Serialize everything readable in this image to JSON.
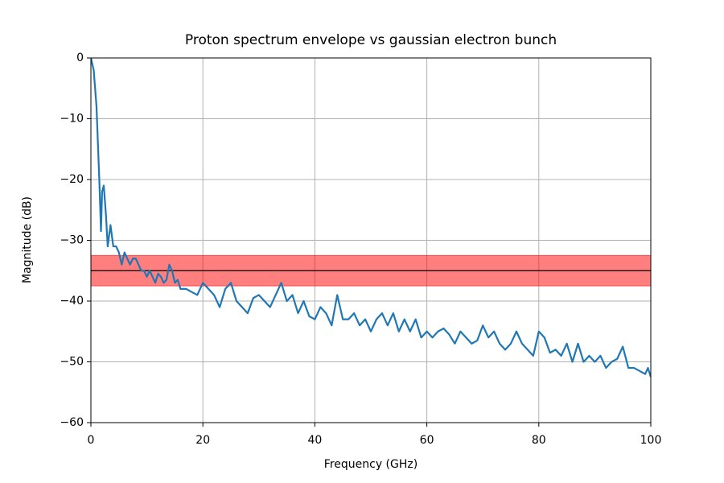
{
  "chart_data": {
    "type": "line",
    "title": "Proton spectrum envelope vs gaussian electron bunch",
    "xlabel": "Frequency (GHz)",
    "ylabel": "Magnitude (dB)",
    "color": "#1f77b4",
    "grid": true,
    "xlim": [
      0,
      100
    ],
    "ylim": [
      -60,
      0
    ],
    "xticks": [
      0,
      20,
      40,
      60,
      80,
      100
    ],
    "yticks": [
      {
        "value": -60,
        "label": "−60"
      },
      {
        "value": -50,
        "label": "−50"
      },
      {
        "value": -40,
        "label": "−40"
      },
      {
        "value": -30,
        "label": "−30"
      },
      {
        "value": -20,
        "label": "−20"
      },
      {
        "value": -10,
        "label": "−10"
      },
      0
    ],
    "band": {
      "low": -37.5,
      "high": -32.5,
      "color": "#ff0000"
    },
    "reference_line": -35,
    "x": [
      0,
      0.5,
      1,
      1.5,
      1.8,
      2.0,
      2.3,
      2.7,
      3.0,
      3.5,
      4,
      4.5,
      5,
      5.5,
      6,
      6.5,
      7,
      7.5,
      8,
      8.5,
      9,
      9.5,
      10,
      10.5,
      11,
      11.5,
      12,
      12.5,
      13,
      13.5,
      14,
      14.5,
      15,
      15.5,
      16,
      17,
      18,
      19,
      20,
      21,
      22,
      23,
      24,
      25,
      26,
      27,
      28,
      29,
      30,
      31,
      32,
      33,
      34,
      35,
      36,
      37,
      38,
      39,
      40,
      41,
      42,
      43,
      44,
      45,
      46,
      47,
      48,
      49,
      50,
      51,
      52,
      53,
      54,
      55,
      56,
      57,
      58,
      59,
      60,
      61,
      62,
      63,
      64,
      65,
      66,
      67,
      68,
      69,
      70,
      71,
      72,
      73,
      74,
      75,
      76,
      77,
      78,
      79,
      80,
      81,
      82,
      83,
      84,
      85,
      86,
      87,
      88,
      89,
      90,
      91,
      92,
      93,
      94,
      95,
      96,
      97,
      98,
      99,
      99.5,
      100
    ],
    "values": [
      0,
      -2,
      -8,
      -20,
      -28.5,
      -22,
      -21,
      -26,
      -31,
      -27.5,
      -31,
      -31,
      -32,
      -34,
      -32,
      -33,
      -34,
      -33,
      -33,
      -34,
      -35,
      -35,
      -36,
      -35,
      -36,
      -37,
      -35.5,
      -36,
      -37,
      -36.5,
      -34,
      -35,
      -37,
      -36.5,
      -38,
      -38,
      -38.5,
      -39,
      -37,
      -38,
      -39,
      -41,
      -38,
      -37,
      -40,
      -41,
      -42,
      -39.5,
      -39,
      -40,
      -41,
      -39,
      -37,
      -40,
      -39,
      -42,
      -40,
      -42.5,
      -43,
      -41,
      -42,
      -44,
      -39,
      -43,
      -43,
      -42,
      -44,
      -43,
      -45,
      -43,
      -42,
      -44,
      -42,
      -45,
      -43,
      -45,
      -43,
      -46,
      -45,
      -46,
      -45,
      -44.5,
      -45.5,
      -47,
      -45,
      -46,
      -47,
      -46.5,
      -44,
      -46,
      -45,
      -47,
      -48,
      -47,
      -45,
      -47,
      -48,
      -49,
      -45,
      -46,
      -48.5,
      -48,
      -49,
      -47,
      -50,
      -47,
      -50,
      -49,
      -50,
      -49,
      -51,
      -50,
      -49.5,
      -47.5,
      -51,
      -51,
      -51.5,
      -52,
      -51,
      -52.5
    ]
  }
}
